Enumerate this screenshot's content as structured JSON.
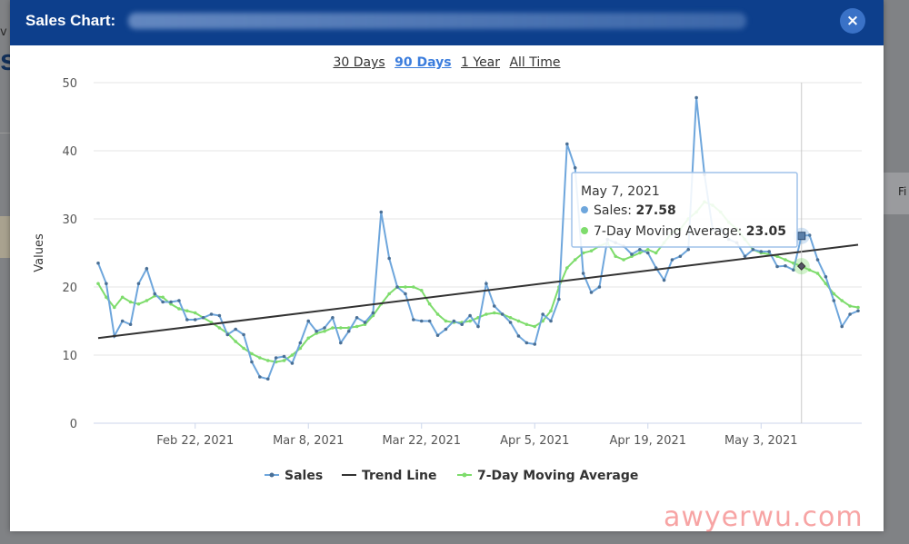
{
  "background": {
    "title_fragment": "s",
    "label_fragment": "v",
    "right_fragment": "Fi"
  },
  "modal": {
    "title": "Sales Chart:",
    "close_icon": "×"
  },
  "ranges": [
    {
      "label": "30 Days",
      "active": false
    },
    {
      "label": "90 Days",
      "active": true
    },
    {
      "label": "1 Year",
      "active": false
    },
    {
      "label": "All Time",
      "active": false
    }
  ],
  "tooltip": {
    "date": "May 7, 2021",
    "sales_label": "Sales: ",
    "sales_value": "27.58",
    "ma_label": "7-Day Moving Average: ",
    "ma_value": "23.05"
  },
  "watermark": "awyerwu.com",
  "colors": {
    "header": "#0d3f8c",
    "sales": "#6ea6dc",
    "trend": "#333333",
    "moving_average": "#7edc6c",
    "active_range": "#3b7ddd"
  },
  "chart_data": {
    "type": "line",
    "ylabel": "Values",
    "ylim": [
      0,
      50
    ],
    "yticks": [
      0,
      10,
      20,
      30,
      40,
      50
    ],
    "xtick_labels": [
      "Feb 22, 2021",
      "Mar 8, 2021",
      "Mar 22, 2021",
      "Apr 5, 2021",
      "Apr 19, 2021",
      "May 3, 2021"
    ],
    "x_start": "Feb 10, 2021",
    "legend": [
      "Sales",
      "Trend Line",
      "7-Day Moving Average"
    ],
    "legend_position": "bottom",
    "series": [
      {
        "name": "Sales",
        "color": "#6ea6dc",
        "values": [
          23.5,
          20.5,
          12.8,
          15,
          14.5,
          20.5,
          22.7,
          19,
          17.8,
          17.8,
          18,
          15.2,
          15.2,
          15.5,
          16,
          15.8,
          13,
          13.8,
          13,
          9,
          6.8,
          6.5,
          9.6,
          9.8,
          8.8,
          11.8,
          15,
          13.5,
          14,
          15.5,
          11.8,
          13.5,
          15.5,
          14.8,
          16.2,
          31,
          24.2,
          20,
          19,
          15.2,
          15,
          15,
          12.9,
          13.8,
          15,
          14.5,
          15.8,
          14.2,
          20.5,
          17.2,
          16,
          14.8,
          12.8,
          11.8,
          11.6,
          16,
          15,
          18.2,
          41,
          37.5,
          22,
          19.2,
          20,
          27,
          26.5,
          26,
          24.8,
          25.5,
          25,
          22.8,
          21,
          24,
          24.5,
          25.5,
          47.8,
          36.5,
          28.5,
          28.5,
          27,
          26.5,
          24.5,
          25.5,
          25.2,
          25.2,
          23,
          23.1,
          22.5,
          27.5,
          27.6,
          24,
          21.5,
          18,
          14.2,
          16,
          16.5
        ]
      },
      {
        "name": "Trend Line",
        "color": "#333333",
        "values": [
          12.5,
          26.2
        ]
      },
      {
        "name": "7-Day Moving Average",
        "color": "#7edc6c",
        "values": [
          20.5,
          18.5,
          17,
          18.5,
          17.8,
          17.5,
          18,
          18.7,
          18.5,
          17.5,
          16.8,
          16.5,
          16.2,
          15.5,
          14.8,
          14,
          13.2,
          12,
          11,
          10.2,
          9.6,
          9.2,
          9,
          9.2,
          10,
          11,
          12.5,
          13.2,
          13.5,
          14,
          14,
          14,
          14.2,
          14.5,
          15.8,
          17.5,
          19,
          20,
          20,
          20,
          19.5,
          17.5,
          16,
          15,
          14.8,
          14.8,
          15,
          15.5,
          16,
          16.2,
          16,
          15.5,
          15,
          14.5,
          14.2,
          15,
          16.5,
          20,
          22.8,
          24,
          25,
          25.3,
          26,
          26.5,
          24.5,
          24,
          24.5,
          25,
          25.5,
          25,
          26.5,
          28,
          28.5,
          30,
          31,
          32.5,
          32,
          31,
          29.5,
          28.5,
          27,
          25.5,
          25,
          24.8,
          24.5,
          24,
          23.5,
          23.05,
          22.5,
          22,
          20.5,
          19,
          18,
          17.2,
          17
        ]
      }
    ]
  }
}
